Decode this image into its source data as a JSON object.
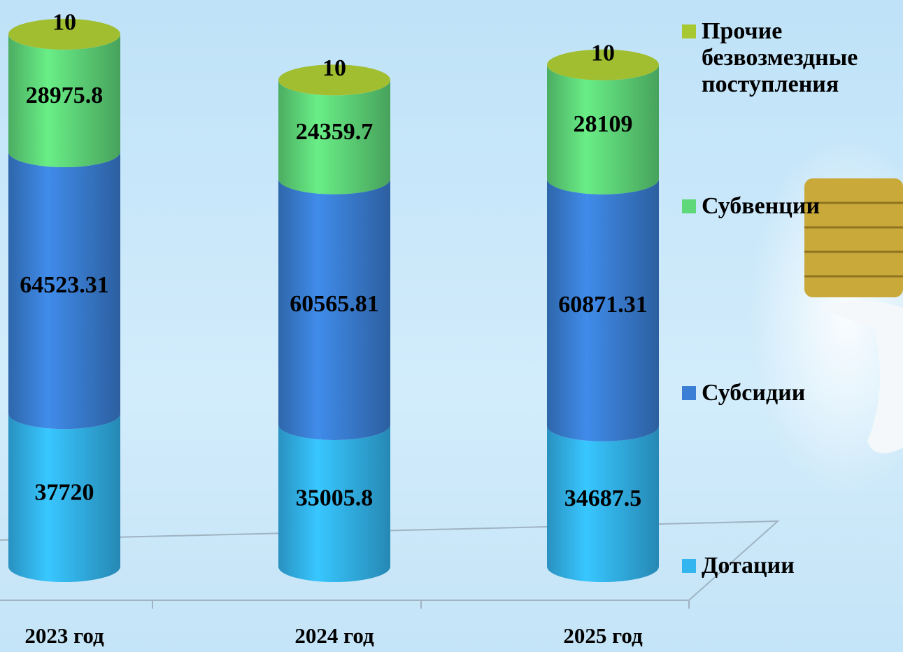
{
  "chart_data": {
    "type": "bar3d-stacked",
    "categories": [
      "2023 год",
      "2024 год",
      "2025 год"
    ],
    "series": [
      {
        "name": "Дотации",
        "color": "#33b5f0",
        "values": [
          37720,
          35005.8,
          34687.5
        ]
      },
      {
        "name": "Субсидии",
        "color": "#3a7fd5",
        "values": [
          64523.31,
          60565.81,
          60871.31
        ]
      },
      {
        "name": "Субвенции",
        "color": "#5fd87a",
        "values": [
          28975.8,
          24359.7,
          28109
        ]
      },
      {
        "name": "Прочие безвозмездные поступления",
        "color": "#a8c832",
        "values": [
          10,
          10,
          10
        ]
      }
    ]
  }
}
